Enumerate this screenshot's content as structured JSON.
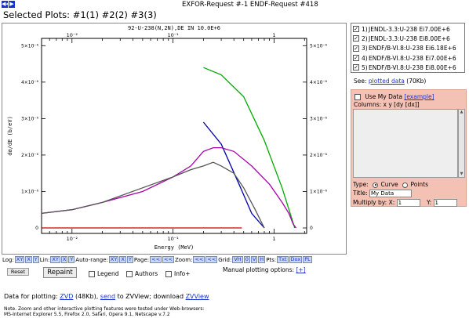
{
  "nav": {
    "first_arrow": "◀◀",
    "next_arrow": "▶"
  },
  "header": {
    "request_title": "EXFOR-Request #-1 ENDF-Request #418",
    "selected_label": "Selected Plots:",
    "plots": [
      "#1(1)",
      "#2(2)",
      "#3(3)"
    ]
  },
  "legend": [
    {
      "num": "1)",
      "label": "JENDL-3.3:U-238 Ei7.00E+6",
      "checked": true,
      "color": "#0000aa"
    },
    {
      "num": "2)",
      "label": "JENDL-3.3:U-238 Ei8.00E+6",
      "checked": true,
      "color": "#00aa00"
    },
    {
      "num": "3)",
      "label": "ENDF/B-VI.8:U-238 Ei6.18E+6",
      "checked": true,
      "color": "#cc0000"
    },
    {
      "num": "4)",
      "label": "ENDF/B-VI.8:U-238 Ei7.00E+6",
      "checked": true,
      "color": "#aa00aa"
    },
    {
      "num": "5)",
      "label": "ENDF/B-VI.8:U-238 Ei8.00E+6",
      "checked": true,
      "color": "#555555"
    }
  ],
  "see": {
    "prefix": "See:",
    "link": "plotted data",
    "suffix": "(70Kb)"
  },
  "mydata": {
    "use_label": "Use My Data",
    "example_link": "[example]",
    "columns_label": "Columns: x y [dy [dx]]",
    "type_label": "Type:",
    "curve_label": "Curve",
    "points_label": "Points",
    "title_label": "Title:",
    "title_value": "My Data",
    "multiply_label": "Multiply by:",
    "x_label": "X:",
    "x_value": "1",
    "y_label": "Y:",
    "y_value": "1"
  },
  "controls": {
    "log_label": "Log:",
    "log_btns": [
      "XY",
      "X",
      "Y"
    ],
    "lin_label": "Lin:",
    "lin_btns": [
      "XY",
      "X",
      "Y"
    ],
    "auto_label": "Auto-range:",
    "auto_btns": [
      "XY",
      "X",
      "Y"
    ],
    "page_label": "Page:",
    "page_btns": [
      "<<",
      "<<"
    ],
    "zoom_label": "Zoom:",
    "zoom_btns": [
      "<<",
      "<<"
    ],
    "grid_label": "Grid:",
    "grid_btns": [
      "VH",
      "0",
      "V",
      "H"
    ],
    "pts_label": "Pts:",
    "pts_btns": [
      "Txt",
      "Dox"
    ],
    "pl_btn": "PL"
  },
  "buttons": {
    "reset": "Reset",
    "repaint": "Repaint"
  },
  "options": {
    "legend": "Legend",
    "authors": "Authors",
    "info": "Info+"
  },
  "manual": {
    "label": "Manual plotting options:",
    "link": "[+]"
  },
  "dataline": {
    "prefix": "Data for plotting:",
    "zvd_link": "ZVD",
    "zvd_size": "(48Kb),",
    "send_link": "send",
    "to_zview": "to ZVView; download",
    "zvview_link": "ZVView"
  },
  "note": {
    "line1": "Note. Zoom and other interactive plotting features were tested under Web-browsers:",
    "line2": "MS-Internet Explorer 5.5, Firefox 2.0, Safari, Opera 9.1, Netscape v.7.2"
  },
  "chart_data": {
    "type": "line",
    "title": "92-U-238(N,2N),DE IN 10.0E+6",
    "xlabel": "Energy (MeV)",
    "ylabel": "dσ/dE (b/eV)",
    "x_scale": "log",
    "xlim": [
      0.005,
      2.1
    ],
    "ylim": [
      -1.5e-07,
      5.2e-06
    ],
    "x_ticks": [
      0.01,
      0.1,
      1
    ],
    "x_tick_labels": [
      "10⁻²",
      "10⁻¹",
      "1"
    ],
    "y_ticks": [
      0,
      1e-06,
      2e-06,
      3e-06,
      4e-06,
      5e-06
    ],
    "y_tick_labels": [
      "0",
      "1×10⁻⁶",
      "2×10⁻⁶",
      "3×10⁻⁶",
      "4×10⁻⁶",
      "5×10⁻⁶"
    ],
    "series": [
      {
        "name": "JENDL-3.3:U-238 Ei7.00E+6",
        "color": "#0000aa",
        "x": [
          0.2,
          0.3,
          0.45,
          0.6,
          0.8
        ],
        "y": [
          2.9e-06,
          2.3e-06,
          1.2e-06,
          4e-07,
          0
        ]
      },
      {
        "name": "JENDL-3.3:U-238 Ei8.00E+6",
        "color": "#00aa00",
        "x": [
          0.2,
          0.3,
          0.5,
          0.8,
          1.2,
          1.6
        ],
        "y": [
          4.4e-06,
          4.2e-06,
          3.6e-06,
          2.4e-06,
          1.1e-06,
          0
        ]
      },
      {
        "name": "ENDF/B-VI.8:U-238 Ei6.18E+6",
        "color": "#cc0000",
        "x": [
          0.005,
          0.1,
          0.48
        ],
        "y": [
          0,
          0,
          0
        ]
      },
      {
        "name": "ENDF/B-VI.8:U-238 Ei7.00E+6",
        "color": "#aa00aa",
        "x": [
          0.005,
          0.01,
          0.02,
          0.05,
          0.1,
          0.15,
          0.2,
          0.25,
          0.3,
          0.4,
          0.6,
          0.9,
          1.2,
          1.4,
          1.55,
          1.65
        ],
        "y": [
          4e-07,
          5e-07,
          7e-07,
          1e-06,
          1.4e-06,
          1.7e-06,
          2.1e-06,
          2.2e-06,
          2.2e-06,
          2.1e-06,
          1.7e-06,
          1.2e-06,
          7e-07,
          4e-07,
          1e-07,
          0
        ]
      },
      {
        "name": "ENDF/B-VI.8:U-238 Ei8.00E+6",
        "color": "#555555",
        "x": [
          0.005,
          0.01,
          0.02,
          0.05,
          0.1,
          0.15,
          0.2,
          0.25,
          0.3,
          0.4,
          0.5,
          0.65,
          0.8
        ],
        "y": [
          4e-07,
          5e-07,
          7e-07,
          1.1e-06,
          1.4e-06,
          1.6e-06,
          1.7e-06,
          1.8e-06,
          1.7e-06,
          1.5e-06,
          1.1e-06,
          5e-07,
          0
        ]
      }
    ]
  }
}
